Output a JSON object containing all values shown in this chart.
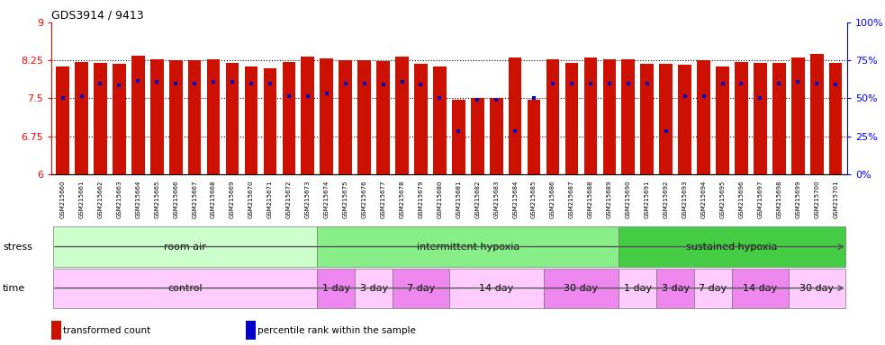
{
  "title": "GDS3914 / 9413",
  "ylim_left": [
    6,
    9
  ],
  "yticks_left": [
    6,
    6.75,
    7.5,
    8.25,
    9
  ],
  "yticklabels_left": [
    "6",
    "6.75",
    "7.5",
    "8.25",
    "9"
  ],
  "ylim_right": [
    0,
    100
  ],
  "yticks_right": [
    0,
    25,
    50,
    75,
    100
  ],
  "yticklabels_right": [
    "0%",
    "25%",
    "50%",
    "75%",
    "100%"
  ],
  "samples": [
    "GSM215660",
    "GSM215661",
    "GSM215662",
    "GSM215663",
    "GSM215664",
    "GSM215665",
    "GSM215666",
    "GSM215667",
    "GSM215668",
    "GSM215669",
    "GSM215670",
    "GSM215671",
    "GSM215672",
    "GSM215673",
    "GSM215674",
    "GSM215675",
    "GSM215676",
    "GSM215677",
    "GSM215678",
    "GSM215679",
    "GSM215680",
    "GSM215681",
    "GSM215682",
    "GSM215683",
    "GSM215684",
    "GSM215685",
    "GSM215686",
    "GSM215687",
    "GSM215688",
    "GSM215689",
    "GSM215690",
    "GSM215691",
    "GSM215692",
    "GSM215693",
    "GSM215694",
    "GSM215695",
    "GSM215696",
    "GSM215697",
    "GSM215698",
    "GSM215699",
    "GSM215700",
    "GSM215701"
  ],
  "bar_values": [
    8.13,
    8.22,
    8.2,
    8.18,
    8.35,
    8.27,
    8.25,
    8.25,
    8.28,
    8.2,
    8.13,
    8.1,
    8.22,
    8.33,
    8.29,
    8.25,
    8.25,
    8.23,
    8.33,
    8.18,
    8.13,
    7.48,
    7.5,
    7.5,
    8.3,
    7.47,
    8.27,
    8.2,
    8.3,
    8.28,
    8.28,
    8.18,
    8.19,
    8.17,
    8.25,
    8.13,
    8.22,
    8.2,
    8.2,
    8.3,
    8.37,
    8.2
  ],
  "percentile_values": [
    7.5,
    7.55,
    7.8,
    7.75,
    7.85,
    7.82,
    7.8,
    7.8,
    7.82,
    7.82,
    7.8,
    7.8,
    7.55,
    7.55,
    7.6,
    7.8,
    7.8,
    7.78,
    7.83,
    7.78,
    7.5,
    6.85,
    7.47,
    7.47,
    6.85,
    7.5,
    7.8,
    7.8,
    7.8,
    7.8,
    7.8,
    7.8,
    6.85,
    7.55,
    7.55,
    7.8,
    7.8,
    7.5,
    7.8,
    7.82,
    7.8,
    7.78
  ],
  "bar_color": "#CC1100",
  "dot_color": "#0000CC",
  "bar_bottom": 6.0,
  "hline_values": [
    6.75,
    7.5,
    8.25
  ],
  "stress_groups": [
    {
      "label": "room air",
      "start": 0,
      "end": 14,
      "color": "#CCFFCC"
    },
    {
      "label": "intermittent hypoxia",
      "start": 14,
      "end": 30,
      "color": "#88EE88"
    },
    {
      "label": "sustained hypoxia",
      "start": 30,
      "end": 42,
      "color": "#44CC44"
    }
  ],
  "time_groups": [
    {
      "label": "control",
      "start": 0,
      "end": 14,
      "color": "#FFCCFF"
    },
    {
      "label": "1 day",
      "start": 14,
      "end": 16,
      "color": "#EE88EE"
    },
    {
      "label": "3 day",
      "start": 16,
      "end": 18,
      "color": "#FFCCFF"
    },
    {
      "label": "7 day",
      "start": 18,
      "end": 21,
      "color": "#EE88EE"
    },
    {
      "label": "14 day",
      "start": 21,
      "end": 26,
      "color": "#FFCCFF"
    },
    {
      "label": "30 day",
      "start": 26,
      "end": 30,
      "color": "#EE88EE"
    },
    {
      "label": "1 day",
      "start": 30,
      "end": 32,
      "color": "#FFCCFF"
    },
    {
      "label": "3 day",
      "start": 32,
      "end": 34,
      "color": "#EE88EE"
    },
    {
      "label": "7 day",
      "start": 34,
      "end": 36,
      "color": "#FFCCFF"
    },
    {
      "label": "14 day",
      "start": 36,
      "end": 39,
      "color": "#EE88EE"
    },
    {
      "label": "30 day",
      "start": 39,
      "end": 42,
      "color": "#FFCCFF"
    }
  ],
  "legend_items": [
    {
      "color": "#CC1100",
      "label": "transformed count"
    },
    {
      "color": "#0000CC",
      "label": "percentile rank within the sample"
    }
  ],
  "fig_width": 9.83,
  "fig_height": 3.84,
  "dpi": 100
}
